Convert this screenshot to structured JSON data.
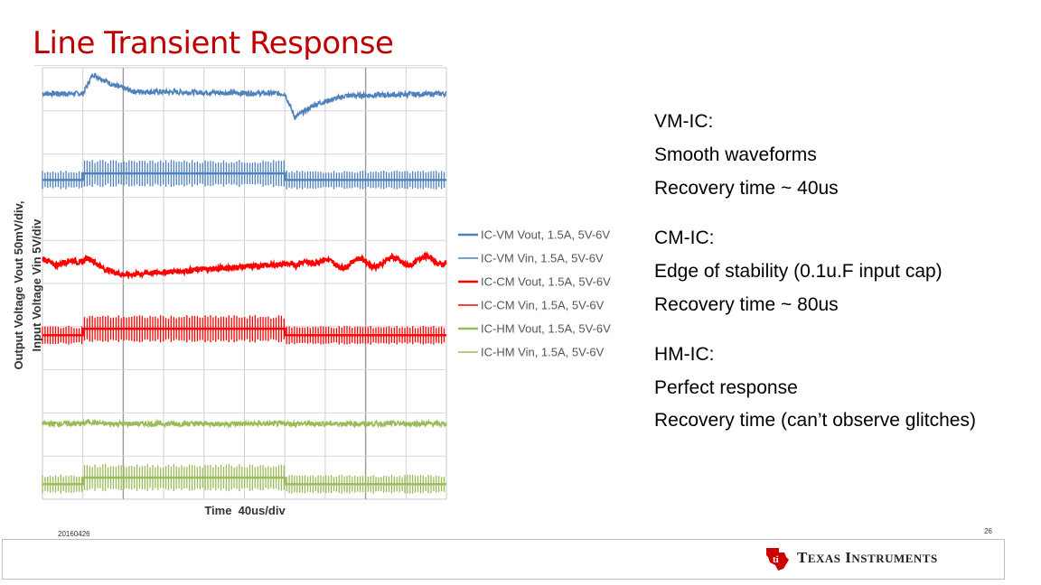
{
  "slide": {
    "title": "Line Transient Response",
    "date": "20160426",
    "page_number": "26",
    "logo_text": "Texas Instruments"
  },
  "notes": {
    "vm": {
      "heading": "VM-IC:",
      "lines": [
        "Smooth waveforms",
        "Recovery time ~ 40us"
      ]
    },
    "cm": {
      "heading": "CM-IC:",
      "lines": [
        "Edge of stability (0.1u.F input cap)",
        "Recovery time ~ 80us"
      ]
    },
    "hm": {
      "heading": "HM-IC:",
      "lines": [
        "Perfect response",
        "Recovery time (can’t observe glitches)"
      ]
    }
  },
  "chart_data": {
    "type": "line",
    "title": "",
    "xlabel": "Time  40us/div",
    "ylabel_lines": [
      "Output Voltage  Vout  50mV/div,",
      "Input Voltage  Vin  5V/div"
    ],
    "grid": true,
    "x_divisions": 10,
    "y_divisions": 10,
    "x_unit": "us",
    "x_per_div": 40,
    "xlim": [
      0,
      400
    ],
    "step_up_us": 40,
    "step_down_us": 240,
    "legend_position": "right",
    "colors": {
      "vm": "#4f81bd",
      "cm": "#ff0000",
      "hm": "#9bbb59"
    },
    "series": [
      {
        "name": "IC-VM  Vout, 1.5A, 5V-6V",
        "color": "#4f81bd",
        "kind": "vout",
        "offset_div": 0.6,
        "points": [
          [
            0,
            0
          ],
          [
            40,
            0
          ],
          [
            50,
            0.45
          ],
          [
            70,
            0.2
          ],
          [
            90,
            0.05
          ],
          [
            240,
            0
          ],
          [
            250,
            -0.55
          ],
          [
            270,
            -0.25
          ],
          [
            300,
            -0.05
          ],
          [
            400,
            0
          ]
        ]
      },
      {
        "name": "IC-VM  Vin, 1.5A, 5V-6V",
        "color": "#4f81bd",
        "kind": "vin",
        "offset_div": 2.45
      },
      {
        "name": "IC-CM  Vout, 1.5A, 5V-6V",
        "color": "#ff0000",
        "kind": "vout",
        "offset_div": 4.45,
        "points": [
          [
            0,
            0
          ],
          [
            10,
            -0.15
          ],
          [
            20,
            0
          ],
          [
            35,
            -0.1
          ],
          [
            45,
            0.05
          ],
          [
            60,
            -0.2
          ],
          [
            80,
            -0.35
          ],
          [
            110,
            -0.3
          ],
          [
            240,
            -0.1
          ],
          [
            250,
            -0.25
          ],
          [
            260,
            0.05
          ],
          [
            280,
            -0.1
          ],
          [
            400,
            0
          ]
        ]
      },
      {
        "name": "IC-CM  Vin, 1.5A, 5V-6V",
        "color": "#ff0000",
        "kind": "vin",
        "offset_div": 6.05
      },
      {
        "name": "IC-HM  Vout, 1.5A, 5V-6V",
        "color": "#9bbb59",
        "kind": "vout",
        "offset_div": 8.25,
        "points": [
          [
            0,
            0
          ],
          [
            40,
            0
          ],
          [
            45,
            0.05
          ],
          [
            60,
            0
          ],
          [
            240,
            0
          ],
          [
            400,
            0
          ]
        ]
      },
      {
        "name": "IC-HM  Vin, 1.5A, 5V-6V",
        "color": "#9bbb59",
        "kind": "vin",
        "offset_div": 9.5
      }
    ]
  }
}
